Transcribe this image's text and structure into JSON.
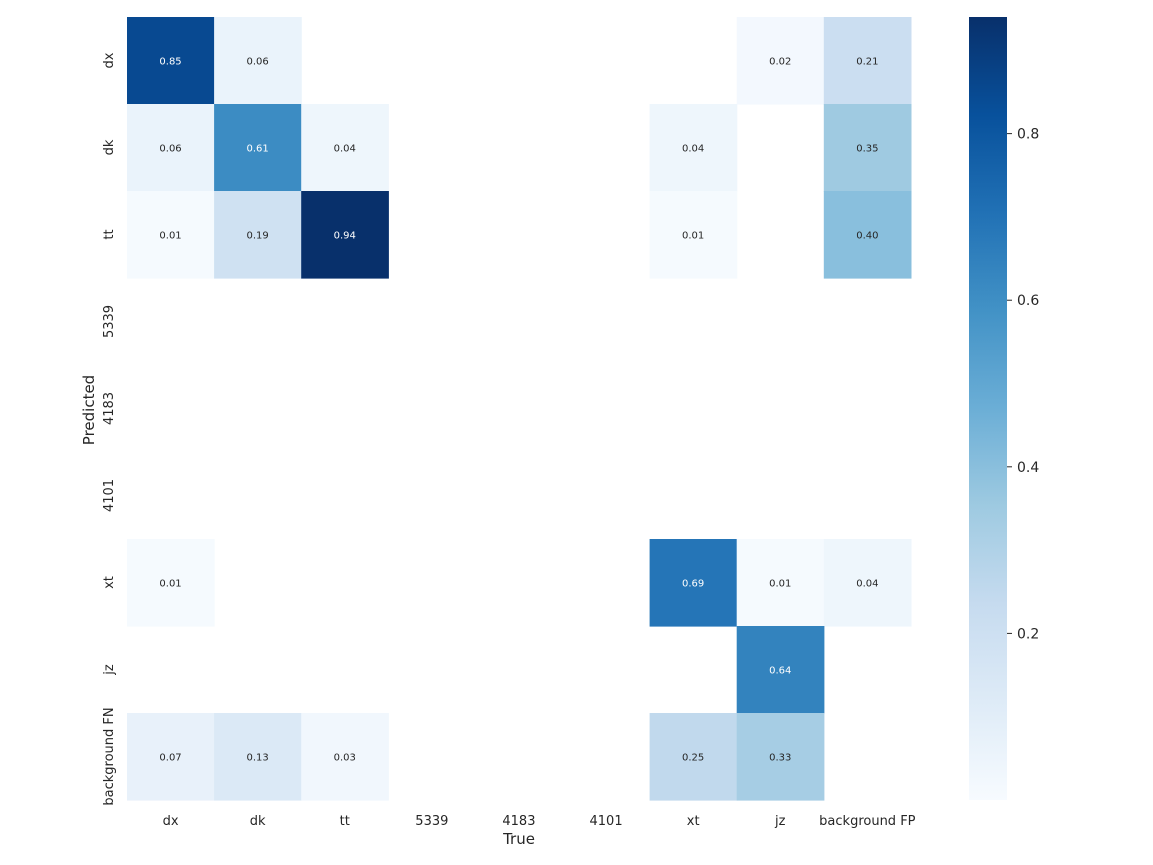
{
  "chart_data": {
    "type": "heatmap",
    "xlabel": "True",
    "ylabel": "Predicted",
    "x_categories": [
      "dx",
      "dk",
      "tt",
      "5339",
      "4183",
      "4101",
      "xt",
      "jz",
      "background FP"
    ],
    "y_categories": [
      "dx",
      "dk",
      "tt",
      "5339",
      "4183",
      "4101",
      "xt",
      "jz",
      "background FN"
    ],
    "values": [
      [
        0.85,
        0.06,
        null,
        null,
        null,
        null,
        null,
        0.02,
        0.21
      ],
      [
        0.06,
        0.61,
        0.04,
        null,
        null,
        null,
        0.04,
        null,
        0.35
      ],
      [
        0.01,
        0.19,
        0.94,
        null,
        null,
        null,
        0.01,
        null,
        0.4
      ],
      [
        null,
        null,
        null,
        null,
        null,
        null,
        null,
        null,
        null
      ],
      [
        null,
        null,
        null,
        null,
        null,
        null,
        null,
        null,
        null
      ],
      [
        null,
        null,
        null,
        null,
        null,
        null,
        null,
        null,
        null
      ],
      [
        0.01,
        null,
        null,
        null,
        null,
        null,
        0.69,
        0.01,
        0.04
      ],
      [
        null,
        null,
        null,
        null,
        null,
        null,
        null,
        0.64,
        null
      ],
      [
        0.07,
        0.13,
        0.03,
        null,
        null,
        null,
        0.25,
        0.33,
        null
      ]
    ],
    "colormap": "Blues",
    "vmin": 0,
    "vmax": 0.94,
    "colorbar_ticks": [
      0.2,
      0.4,
      0.6,
      0.8
    ],
    "annotation_light_threshold": 0.47,
    "grid": false,
    "legend": "colorbar-right"
  }
}
